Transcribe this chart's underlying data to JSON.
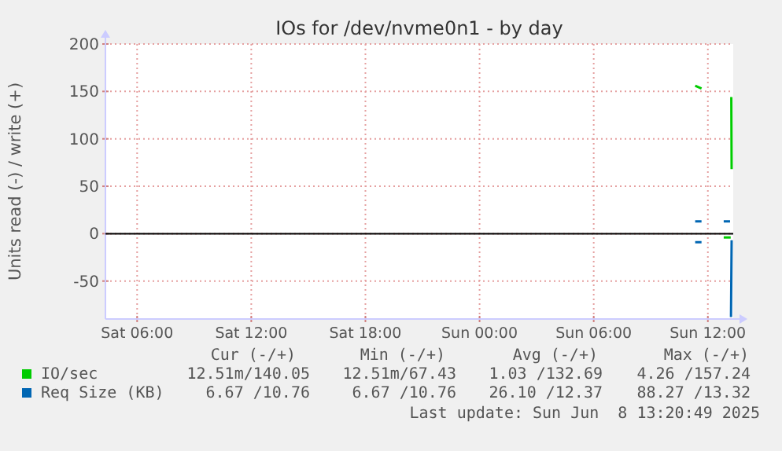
{
  "chart_data": {
    "type": "line",
    "title": "IOs for /dev/nvme0n1 - by day",
    "ylabel": "Units read (-) / write (+)",
    "xlim": [
      "2025-06-07T04:20",
      "2025-06-08T13:20"
    ],
    "xticks": [
      {
        "value": "2025-06-07T06:00",
        "label": "Sat 06:00"
      },
      {
        "value": "2025-06-07T12:00",
        "label": "Sat 12:00"
      },
      {
        "value": "2025-06-07T18:00",
        "label": "Sat 18:00"
      },
      {
        "value": "2025-06-08T00:00",
        "label": "Sun 00:00"
      },
      {
        "value": "2025-06-08T06:00",
        "label": "Sun 06:00"
      },
      {
        "value": "2025-06-08T12:00",
        "label": "Sun 12:00"
      }
    ],
    "ylim": [
      -90,
      200
    ],
    "yticks": [
      -50,
      0,
      50,
      100,
      150,
      200
    ],
    "grid": true,
    "legend": "bottom",
    "ref_lines": [
      {
        "axis": "y",
        "value": 0,
        "color": "#000000"
      }
    ],
    "series": [
      {
        "name": "IO/sec",
        "color": "#00cc00",
        "x": [
          "2025-06-08T11:20",
          "2025-06-08T11:40",
          "2025-06-08T12:00",
          "2025-06-08T13:14",
          "2025-06-08T13:15"
        ],
        "values": [
          156,
          153,
          null,
          144,
          68
        ]
      },
      {
        "color": "#00cc00",
        "x": [
          "2025-06-08T12:50",
          "2025-06-08T13:12"
        ],
        "values": [
          -4,
          -4
        ]
      },
      {
        "name": "Req Size (KB)",
        "color": "#0066b3",
        "x": [
          "2025-06-08T11:20",
          "2025-06-08T11:40",
          "2025-06-08T12:00",
          "2025-06-08T12:50",
          "2025-06-08T13:10"
        ],
        "values": [
          13,
          13,
          null,
          13,
          13
        ]
      },
      {
        "color": "#0066b3",
        "x": [
          "2025-06-08T11:20",
          "2025-06-08T11:40",
          "2025-06-08T12:00",
          "2025-06-08T13:13",
          "2025-06-08T13:15"
        ],
        "values": [
          -9,
          -9,
          null,
          -88,
          -7
        ]
      }
    ],
    "annotations": [
      "Cur (-/+)",
      "Min (-/+)",
      "Avg (-/+)",
      "Max (-/+)",
      "12.51m/140.05",
      "12.51m/67.43",
      "1.03 /132.69",
      "4.26 /157.24",
      "6.67 /10.76",
      "6.67 /10.76",
      "26.10 /12.37",
      "88.27 /13.32",
      "Last update: Sun Jun  8 13:20:49 2025"
    ]
  }
}
